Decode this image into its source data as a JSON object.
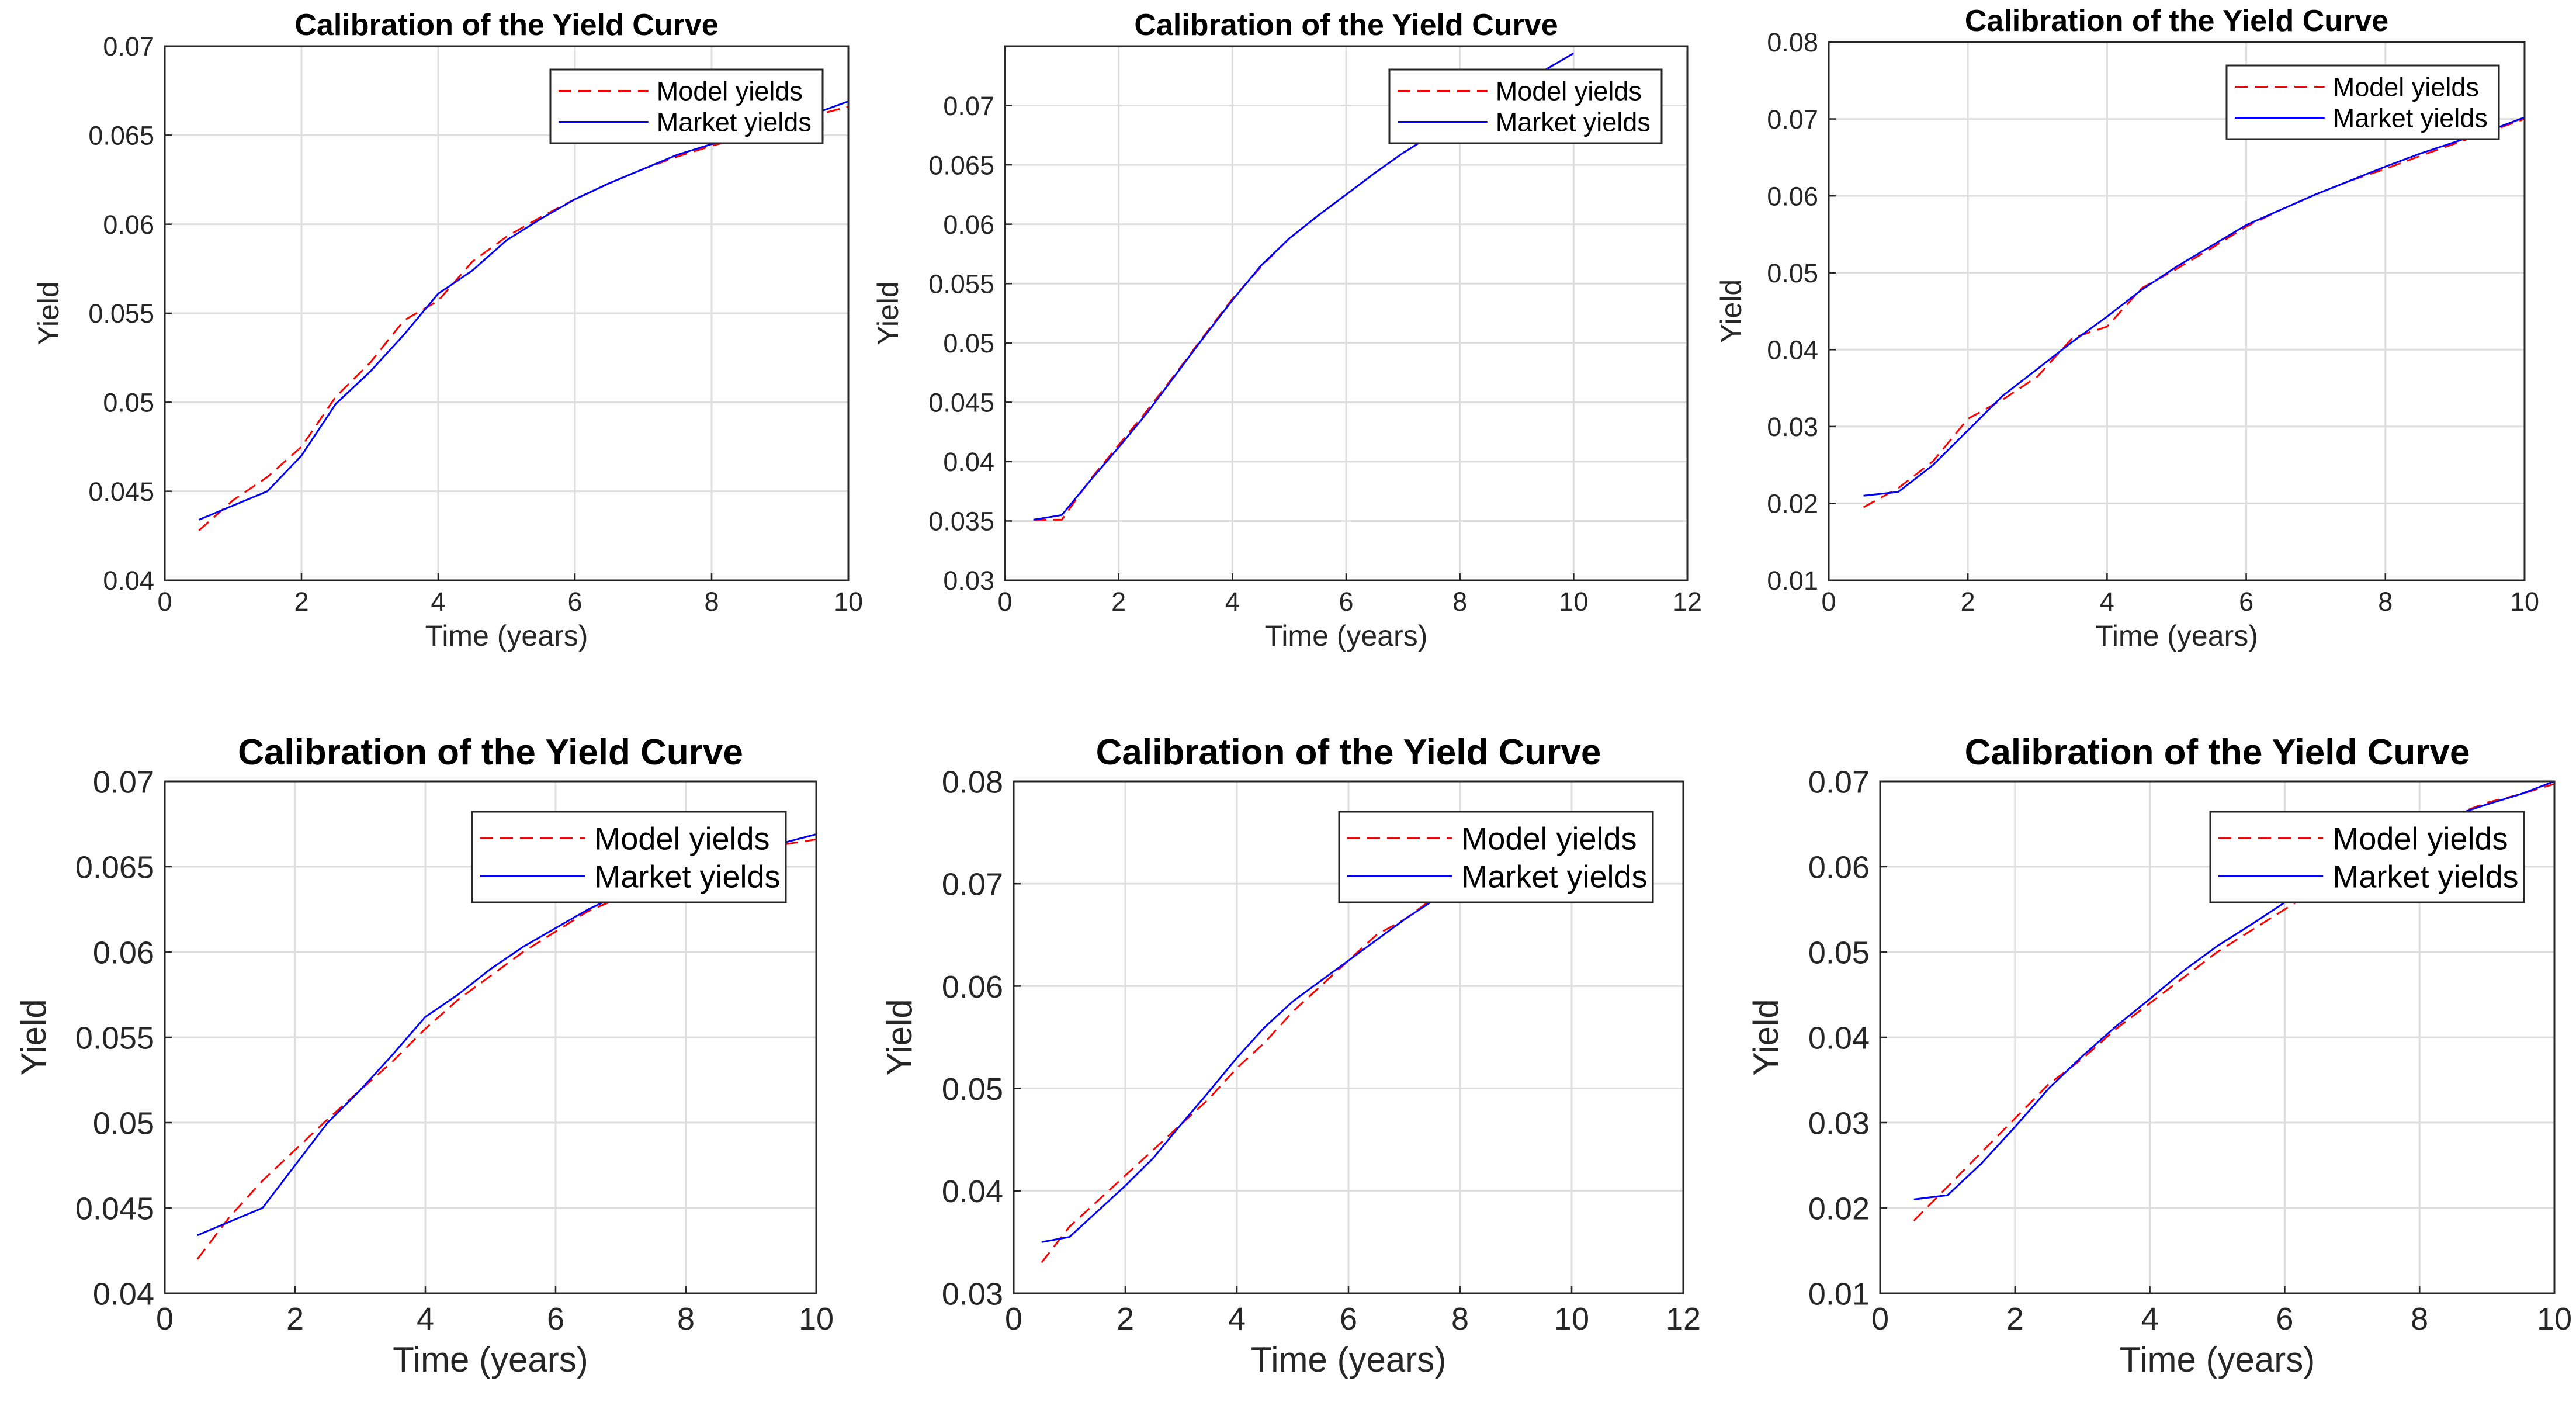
{
  "chart_data": [
    {
      "type": "line",
      "title": "Calibration of the Yield Curve",
      "xlabel": "Time (years)",
      "ylabel": "Yield",
      "xlim": [
        0,
        10
      ],
      "ylim": [
        0.04,
        0.07
      ],
      "xticks": [
        "0",
        "2",
        "4",
        "6",
        "8",
        "10"
      ],
      "yticks": [
        "0.04",
        "0.045",
        "0.05",
        "0.055",
        "0.06",
        "0.065",
        "0.07"
      ],
      "grid": true,
      "legend": "top-right",
      "series": [
        {
          "name": "Model yields",
          "color": "#ff0000",
          "style": "dashed",
          "x": [
            0.5,
            1,
            1.5,
            2,
            2.5,
            3,
            3.5,
            4,
            4.5,
            5,
            5.5,
            6,
            6.5,
            7,
            7.5,
            8,
            8.5,
            9,
            9.5,
            10
          ],
          "y": [
            0.0428,
            0.0445,
            0.0458,
            0.0475,
            0.0503,
            0.0522,
            0.0546,
            0.0557,
            0.0579,
            0.0593,
            0.0604,
            0.0614,
            0.0623,
            0.0631,
            0.0638,
            0.0644,
            0.0649,
            0.0655,
            0.0661,
            0.0666
          ]
        },
        {
          "name": "Market yields",
          "color": "#0000ff",
          "style": "solid",
          "x": [
            0.5,
            1,
            1.5,
            2,
            2.5,
            3,
            3.5,
            4,
            4.5,
            5,
            5.5,
            6,
            6.5,
            7,
            7.5,
            8,
            8.5,
            9,
            9.5,
            10
          ],
          "y": [
            0.0434,
            0.0442,
            0.045,
            0.047,
            0.0499,
            0.0517,
            0.0538,
            0.0561,
            0.0574,
            0.0591,
            0.0603,
            0.0614,
            0.0623,
            0.0631,
            0.0639,
            0.0645,
            0.065,
            0.0655,
            0.0662,
            0.0669
          ]
        }
      ]
    },
    {
      "type": "line",
      "title": "Calibration of the Yield Curve",
      "xlabel": "Time (years)",
      "ylabel": "Yield",
      "xlim": [
        0,
        12
      ],
      "ylim": [
        0.03,
        0.075
      ],
      "xticks": [
        "0",
        "2",
        "4",
        "6",
        "8",
        "10",
        "12"
      ],
      "yticks": [
        "0.03",
        "0.035",
        "0.04",
        "0.045",
        "0.05",
        "0.055",
        "0.06",
        "0.065",
        "0.07"
      ],
      "grid": true,
      "legend": "top-right",
      "series": [
        {
          "name": "Model yields",
          "color": "#ff0000",
          "style": "dashed",
          "x": [
            0.5,
            1,
            1.5,
            2,
            2.5,
            3,
            3.5,
            4,
            4.5,
            5,
            5.5,
            6,
            6.5,
            7,
            7.5,
            8,
            8.5,
            9,
            9.5,
            10
          ],
          "y": [
            0.0351,
            0.0351,
            0.0385,
            0.0414,
            0.0443,
            0.0474,
            0.0506,
            0.0537,
            0.0564,
            0.0588,
            0.0607,
            0.0625,
            0.0643,
            0.066,
            0.0675,
            0.069,
            0.0704,
            0.0717,
            0.073,
            0.0744
          ]
        },
        {
          "name": "Market yields",
          "color": "#0000ff",
          "style": "solid",
          "x": [
            0.5,
            1,
            1.5,
            2,
            2.5,
            3,
            3.5,
            4,
            4.5,
            5,
            5.5,
            6,
            6.5,
            7,
            7.5,
            8,
            8.5,
            9,
            9.5,
            10
          ],
          "y": [
            0.0351,
            0.0355,
            0.0384,
            0.0412,
            0.0441,
            0.0473,
            0.0505,
            0.0536,
            0.0565,
            0.0588,
            0.0607,
            0.0625,
            0.0643,
            0.066,
            0.0675,
            0.069,
            0.0704,
            0.0717,
            0.073,
            0.0744
          ]
        }
      ]
    },
    {
      "type": "line",
      "title": "Calibration of the Yield Curve",
      "xlabel": "Time (years)",
      "ylabel": "Yield",
      "xlim": [
        0,
        10
      ],
      "ylim": [
        0.01,
        0.08
      ],
      "xticks": [
        "0",
        "2",
        "4",
        "6",
        "8",
        "10"
      ],
      "yticks": [
        "0.01",
        "0.02",
        "0.03",
        "0.04",
        "0.05",
        "0.06",
        "0.07",
        "0.08"
      ],
      "grid": true,
      "legend": "top-right",
      "series": [
        {
          "name": "Model yields",
          "color": "#ff0000",
          "style": "dashed",
          "x": [
            0.5,
            1,
            1.5,
            2,
            2.5,
            3,
            3.5,
            4,
            4.5,
            5,
            5.5,
            6,
            6.5,
            7,
            7.5,
            8,
            8.5,
            9,
            9.5,
            10
          ],
          "y": [
            0.0195,
            0.022,
            0.0255,
            0.031,
            0.0335,
            0.0365,
            0.0415,
            0.043,
            0.048,
            0.0505,
            0.0532,
            0.056,
            0.0582,
            0.0602,
            0.062,
            0.0635,
            0.0652,
            0.0668,
            0.0684,
            0.07
          ]
        },
        {
          "name": "Market yields",
          "color": "#0000ff",
          "style": "solid",
          "x": [
            0.5,
            1,
            1.5,
            2,
            2.5,
            3,
            3.5,
            4,
            4.5,
            5,
            5.5,
            6,
            6.5,
            7,
            7.5,
            8,
            8.5,
            9,
            9.5,
            10
          ],
          "y": [
            0.021,
            0.0215,
            0.025,
            0.0295,
            0.034,
            0.0375,
            0.041,
            0.0443,
            0.0478,
            0.0508,
            0.0535,
            0.0562,
            0.0582,
            0.0602,
            0.062,
            0.0638,
            0.0655,
            0.067,
            0.0685,
            0.0702
          ]
        }
      ]
    },
    {
      "type": "line",
      "title": "Calibration of the Yield Curve",
      "xlabel": "Time (years)",
      "ylabel": "Yield",
      "xlim": [
        0,
        10
      ],
      "ylim": [
        0.04,
        0.07
      ],
      "xticks": [
        "0",
        "2",
        "4",
        "6",
        "8",
        "10"
      ],
      "yticks": [
        "0.04",
        "0.045",
        "0.05",
        "0.055",
        "0.06",
        "0.065",
        "0.07"
      ],
      "grid": true,
      "legend": "top-right",
      "series": [
        {
          "name": "Model yields",
          "color": "#ff0000",
          "style": "dashed",
          "x": [
            0.5,
            1,
            1.5,
            2,
            2.5,
            3,
            3.5,
            4,
            4.5,
            5,
            5.5,
            6,
            6.5,
            7,
            7.5,
            8,
            8.5,
            9,
            9.5,
            10
          ],
          "y": [
            0.042,
            0.0445,
            0.0466,
            0.0484,
            0.0502,
            0.0519,
            0.0536,
            0.0555,
            0.0572,
            0.0586,
            0.06,
            0.0612,
            0.0624,
            0.0632,
            0.0641,
            0.0648,
            0.0654,
            0.066,
            0.0663,
            0.0666
          ]
        },
        {
          "name": "Market yields",
          "color": "#0000ff",
          "style": "solid",
          "x": [
            0.5,
            1,
            1.5,
            2,
            2.5,
            3,
            3.5,
            4,
            4.5,
            5,
            5.5,
            6,
            6.5,
            7,
            7.5,
            8,
            8.5,
            9,
            9.5,
            10
          ],
          "y": [
            0.0434,
            0.0442,
            0.045,
            0.0475,
            0.05,
            0.0519,
            0.054,
            0.0562,
            0.0575,
            0.059,
            0.0603,
            0.0614,
            0.0625,
            0.0634,
            0.0642,
            0.0648,
            0.0654,
            0.0659,
            0.0664,
            0.0669
          ]
        }
      ]
    },
    {
      "type": "line",
      "title": "Calibration of the Yield Curve",
      "xlabel": "Time (years)",
      "ylabel": "Yield",
      "xlim": [
        0,
        12
      ],
      "ylim": [
        0.03,
        0.08
      ],
      "xticks": [
        "0",
        "2",
        "4",
        "6",
        "8",
        "10",
        "12"
      ],
      "yticks": [
        "0.03",
        "0.04",
        "0.05",
        "0.06",
        "0.07",
        "0.08"
      ],
      "grid": true,
      "legend": "top-right",
      "series": [
        {
          "name": "Model yields",
          "color": "#ff0000",
          "style": "dashed",
          "x": [
            0.5,
            1,
            1.5,
            2,
            2.5,
            3,
            3.5,
            4,
            4.5,
            5,
            5.5,
            6,
            6.5,
            7,
            7.5,
            8,
            8.5,
            9,
            9.5,
            10
          ],
          "y": [
            0.033,
            0.0365,
            0.039,
            0.0415,
            0.044,
            0.0465,
            0.049,
            0.052,
            0.0545,
            0.0575,
            0.06,
            0.0625,
            0.065,
            0.0665,
            0.0685,
            0.07,
            0.0718,
            0.073,
            0.0745,
            0.076
          ]
        },
        {
          "name": "Market yields",
          "color": "#0000ff",
          "style": "solid",
          "x": [
            0.5,
            1,
            1.5,
            2,
            2.5,
            3,
            3.5,
            4,
            4.5,
            5,
            5.5,
            6,
            6.5,
            7,
            7.5,
            8,
            8.5,
            9,
            9.5,
            10
          ],
          "y": [
            0.035,
            0.0355,
            0.038,
            0.0405,
            0.0432,
            0.0465,
            0.0497,
            0.053,
            0.056,
            0.0585,
            0.0605,
            0.0625,
            0.0645,
            0.0665,
            0.0683,
            0.07,
            0.0718,
            0.0733,
            0.0747,
            0.076
          ]
        }
      ]
    },
    {
      "type": "line",
      "title": "Calibration of the Yield Curve",
      "xlabel": "Time (years)",
      "ylabel": "Yield",
      "xlim": [
        0,
        10
      ],
      "ylim": [
        0.01,
        0.07
      ],
      "xticks": [
        "0",
        "2",
        "4",
        "6",
        "8",
        "10"
      ],
      "yticks": [
        "0.01",
        "0.02",
        "0.03",
        "0.04",
        "0.05",
        "0.06",
        "0.07"
      ],
      "grid": true,
      "legend": "top-right",
      "series": [
        {
          "name": "Model yields",
          "color": "#ff0000",
          "style": "dashed",
          "x": [
            0.5,
            1,
            1.5,
            2,
            2.5,
            3,
            3.5,
            4,
            4.5,
            5,
            5.5,
            6,
            6.5,
            7,
            7.5,
            8,
            8.5,
            9,
            9.5,
            10
          ],
          "y": [
            0.0185,
            0.0225,
            0.0265,
            0.0305,
            0.0345,
            0.0375,
            0.041,
            0.044,
            0.047,
            0.05,
            0.0525,
            0.055,
            0.0575,
            0.06,
            0.062,
            0.064,
            0.066,
            0.0675,
            0.0685,
            0.0697
          ]
        },
        {
          "name": "Market yields",
          "color": "#0000ff",
          "style": "solid",
          "x": [
            0.5,
            1,
            1.5,
            2,
            2.5,
            3,
            3.5,
            4,
            4.5,
            5,
            5.5,
            6,
            6.5,
            7,
            7.5,
            8,
            8.5,
            9,
            9.5,
            10
          ],
          "y": [
            0.021,
            0.0215,
            0.0252,
            0.0295,
            0.034,
            0.0378,
            0.0413,
            0.0445,
            0.0478,
            0.0507,
            0.0532,
            0.0558,
            0.058,
            0.0602,
            0.0622,
            0.0642,
            0.066,
            0.0673,
            0.0685,
            0.07
          ]
        }
      ]
    }
  ]
}
